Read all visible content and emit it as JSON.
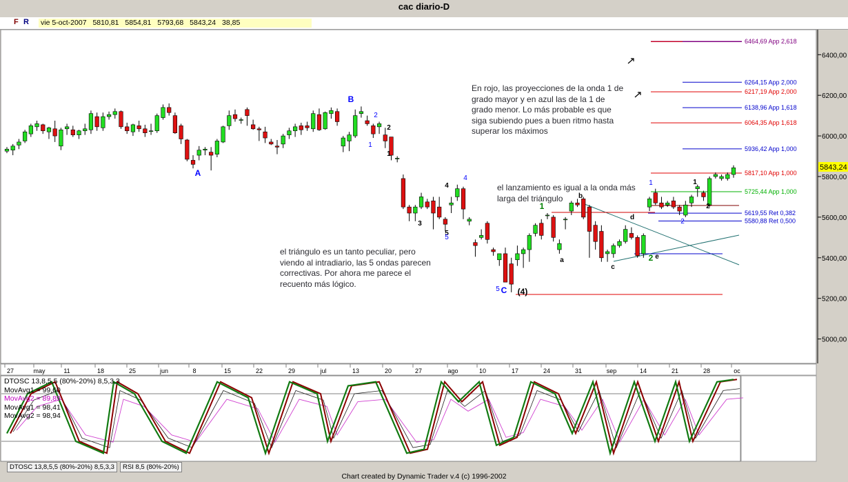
{
  "title": "cac diario-D",
  "infobar": {
    "f": "F",
    "r": "R",
    "date": "vie 5-oct-2007",
    "open": "5810,81",
    "high": "5854,81",
    "low": "5793,68",
    "close": "5843,24",
    "change": "38,85"
  },
  "annotations": {
    "rojo": "En rojo, las proyecciones de la onda 1 de grado mayor y en azul las de la 1 de grado menor. Lo más probable es que siga subiendo pues a buen ritmo hasta superar los máximos",
    "lanzamiento": "el lanzamiento es igual a la onda más larga del triángulo",
    "triangulo": "el triángulo es un tanto peculiar, pero viendo al intradiario, las 5 ondas parecen correctivas. Por ahora me parece el recuento más lógico."
  },
  "levels": [
    {
      "label": "6464,69 App 2,618",
      "value": 6464.69,
      "color": "#800080"
    },
    {
      "label": "6264,15 App 2,000",
      "value": 6264.15,
      "color": "#0000cc"
    },
    {
      "label": "6217,19 App 2,000",
      "value": 6217.19,
      "color": "#e00000"
    },
    {
      "label": "6138,96 App 1,618",
      "value": 6138.96,
      "color": "#0000cc"
    },
    {
      "label": "6064,35 App 1,618",
      "value": 6064.35,
      "color": "#e00000"
    },
    {
      "label": "5936,42 App 1,000",
      "value": 5936.42,
      "color": "#0000cc"
    },
    {
      "label": "5817,10 App 1,000",
      "value": 5817.1,
      "color": "#e00000"
    },
    {
      "label": "5725,44 App 1,000",
      "value": 5725.44,
      "color": "#00b000"
    },
    {
      "label": "5619,55 Ret 0,382",
      "value": 5619.55,
      "color": "#0000cc"
    },
    {
      "label": "5580,88 Ret 0,500",
      "value": 5580.88,
      "color": "#0000cc"
    }
  ],
  "price_tag": "5843,24",
  "osc_legend": [
    {
      "text": "DTOSC 13,8,5,5 (80%-20%) 8,5,3,3",
      "color": "#000000"
    },
    {
      "text": "MovAvg1 = 99,60",
      "color": "#000000"
    },
    {
      "text": "MovAvg2 = 89,89",
      "color": "#c000c0"
    },
    {
      "text": "MovAvg1 = 98,41",
      "color": "#000000"
    },
    {
      "text": "MovAvg2 = 98,94",
      "color": "#000000"
    }
  ],
  "tabs": [
    "DTOSC 13,8,5,5 (80%-20%) 8,5,3,3",
    "RSI 8,5 (80%-20%)"
  ],
  "footer": "Chart created by Dynamic Trader v.4  (c) 1996-2002",
  "chart_data": {
    "type": "candlestick",
    "title": "cac diario-D",
    "ylim": [
      4850,
      6510
    ],
    "y_ticks": [
      "6400,00",
      "6200,00",
      "6000,00",
      "5800,00",
      "5600,00",
      "5400,00",
      "5200,00",
      "5000,00"
    ],
    "x_ticks": [
      "27",
      "may",
      "11",
      "18",
      "25",
      "jun",
      "8",
      "15",
      "22",
      "29",
      "jul",
      "13",
      "20",
      "27",
      "ago",
      "10",
      "17",
      "24",
      "31",
      "sep",
      "14",
      "21",
      "28",
      "oc"
    ],
    "wave_labels": [
      "A",
      "B",
      "C",
      "(4)",
      "1",
      "2",
      "3",
      "4",
      "5",
      "a",
      "b",
      "c",
      "d",
      "e"
    ],
    "candles": [
      [
        5925,
        5945,
        5915,
        5935
      ],
      [
        5930,
        5960,
        5905,
        5950
      ],
      [
        5955,
        5985,
        5935,
        5970
      ],
      [
        5975,
        6030,
        5965,
        6020
      ],
      [
        6010,
        6060,
        5995,
        6050
      ],
      [
        6045,
        6075,
        6025,
        6060
      ],
      [
        6055,
        6060,
        6010,
        6025
      ],
      [
        6020,
        6045,
        5985,
        6040
      ],
      [
        6035,
        6075,
        5970,
        6000
      ],
      [
        5950,
        6040,
        5930,
        6030
      ],
      [
        6035,
        6060,
        6005,
        6045
      ],
      [
        6030,
        6050,
        5995,
        6005
      ],
      [
        6005,
        6030,
        5985,
        6025
      ],
      [
        6025,
        6060,
        6005,
        6035
      ],
      [
        6030,
        6125,
        6010,
        6110
      ],
      [
        6095,
        6115,
        6025,
        6045
      ],
      [
        6040,
        6115,
        6025,
        6095
      ],
      [
        6095,
        6120,
        6080,
        6105
      ],
      [
        6105,
        6135,
        6085,
        6120
      ],
      [
        6120,
        6125,
        6035,
        6045
      ],
      [
        6045,
        6065,
        6010,
        6025
      ],
      [
        6020,
        6060,
        6000,
        6055
      ],
      [
        6050,
        6075,
        6020,
        6035
      ],
      [
        6035,
        6055,
        5995,
        6015
      ],
      [
        6025,
        6060,
        6005,
        6025
      ],
      [
        6025,
        6110,
        6015,
        6100
      ],
      [
        6090,
        6155,
        6080,
        6140
      ],
      [
        6140,
        6160,
        6100,
        6115
      ],
      [
        6100,
        6115,
        6010,
        6015
      ],
      [
        6050,
        6060,
        5960,
        5985
      ],
      [
        5980,
        5985,
        5875,
        5885
      ],
      [
        5880,
        5905,
        5840,
        5860
      ],
      [
        5905,
        5950,
        5880,
        5930
      ],
      [
        5930,
        5945,
        5905,
        5935
      ],
      [
        5920,
        5945,
        5830,
        5905
      ],
      [
        5910,
        5985,
        5895,
        5975
      ],
      [
        5970,
        6050,
        5965,
        6045
      ],
      [
        6050,
        6125,
        6030,
        6100
      ],
      [
        6105,
        6130,
        6070,
        6085
      ],
      [
        6080,
        6090,
        6060,
        6080
      ],
      [
        6130,
        6140,
        6050,
        6100
      ],
      [
        6055,
        6080,
        6030,
        6035
      ],
      [
        6035,
        6045,
        5975,
        6030
      ],
      [
        6020,
        6045,
        5965,
        5990
      ],
      [
        5970,
        5985,
        5955,
        5960
      ],
      [
        5950,
        5980,
        5910,
        5945
      ],
      [
        5960,
        6010,
        5940,
        6000
      ],
      [
        6005,
        6040,
        5985,
        6025
      ],
      [
        6025,
        6060,
        5995,
        6045
      ],
      [
        6050,
        6065,
        6005,
        6030
      ],
      [
        6050,
        6070,
        6025,
        6040
      ],
      [
        6035,
        6125,
        6020,
        6110
      ],
      [
        6105,
        6135,
        6025,
        6030
      ],
      [
        6035,
        6120,
        6030,
        6115
      ],
      [
        6110,
        6140,
        6085,
        6125
      ],
      [
        6120,
        6135,
        6050,
        6070
      ],
      [
        5950,
        6000,
        5920,
        5990
      ],
      [
        5975,
        6020,
        5925,
        6005
      ],
      [
        6000,
        6130,
        5990,
        6100
      ],
      [
        6110,
        6145,
        6090,
        6120
      ],
      [
        6075,
        6100,
        6050,
        6060
      ],
      [
        6050,
        6060,
        5990,
        6010
      ],
      [
        6045,
        6070,
        6010,
        6060
      ],
      [
        6005,
        6040,
        5940,
        5975
      ],
      [
        5995,
        5980,
        5880,
        5905
      ],
      [
        5890,
        5900,
        5870,
        5890
      ],
      [
        5790,
        5810,
        5640,
        5650
      ],
      [
        5650,
        5660,
        5580,
        5620
      ],
      [
        5620,
        5660,
        5580,
        5650
      ],
      [
        5650,
        5720,
        5640,
        5700
      ],
      [
        5675,
        5690,
        5640,
        5650
      ],
      [
        5680,
        5700,
        5540,
        5620
      ],
      [
        5650,
        5700,
        5590,
        5600
      ],
      [
        5590,
        5600,
        5530,
        5565
      ],
      [
        5660,
        5700,
        5620,
        5670
      ],
      [
        5700,
        5760,
        5680,
        5740
      ],
      [
        5740,
        5750,
        5590,
        5640
      ],
      [
        5580,
        5600,
        5560,
        5590
      ],
      [
        5475,
        5490,
        5405,
        5460
      ],
      [
        5500,
        5540,
        5490,
        5510
      ],
      [
        5570,
        5580,
        5470,
        5490
      ],
      [
        5440,
        5450,
        5410,
        5430
      ],
      [
        5390,
        5410,
        5360,
        5420
      ],
      [
        5420,
        5450,
        5280,
        5280
      ],
      [
        5370,
        5400,
        5230,
        5270
      ],
      [
        5390,
        5460,
        5360,
        5420
      ],
      [
        5420,
        5450,
        5350,
        5440
      ],
      [
        5440,
        5520,
        5380,
        5510
      ],
      [
        5520,
        5570,
        5505,
        5560
      ],
      [
        5570,
        5590,
        5490,
        5510
      ],
      [
        5610,
        5620,
        5590,
        5610
      ],
      [
        5600,
        5610,
        5480,
        5500
      ],
      [
        5440,
        5490,
        5420,
        5470
      ],
      [
        5590,
        5600,
        5540,
        5590
      ],
      [
        5630,
        5680,
        5610,
        5670
      ],
      [
        5670,
        5690,
        5650,
        5660
      ],
      [
        5690,
        5700,
        5590,
        5600
      ],
      [
        5650,
        5660,
        5400,
        5530
      ],
      [
        5560,
        5580,
        5440,
        5480
      ],
      [
        5530,
        5560,
        5380,
        5400
      ],
      [
        5420,
        5440,
        5380,
        5430
      ],
      [
        5420,
        5470,
        5400,
        5460
      ],
      [
        5460,
        5490,
        5450,
        5480
      ],
      [
        5480,
        5560,
        5470,
        5540
      ],
      [
        5520,
        5550,
        5490,
        5500
      ],
      [
        5500,
        5510,
        5400,
        5410
      ],
      [
        5420,
        5520,
        5400,
        5510
      ],
      [
        5650,
        5700,
        5630,
        5690
      ],
      [
        5720,
        5740,
        5660,
        5670
      ],
      [
        5670,
        5700,
        5640,
        5650
      ],
      [
        5660,
        5680,
        5650,
        5670
      ],
      [
        5680,
        5700,
        5640,
        5650
      ],
      [
        5650,
        5660,
        5610,
        5630
      ],
      [
        5610,
        5680,
        5600,
        5660
      ],
      [
        5670,
        5710,
        5650,
        5700
      ],
      [
        5740,
        5760,
        5700,
        5750
      ],
      [
        5720,
        5730,
        5680,
        5700
      ],
      [
        5660,
        5800,
        5650,
        5790
      ],
      [
        5800,
        5820,
        5790,
        5810
      ],
      [
        5790,
        5810,
        5780,
        5800
      ],
      [
        5790,
        5820,
        5780,
        5810
      ],
      [
        5810,
        5855,
        5794,
        5843
      ]
    ]
  }
}
